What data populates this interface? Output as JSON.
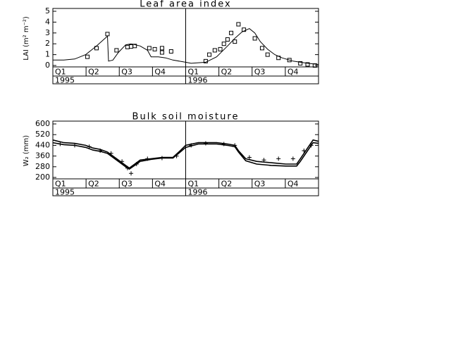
{
  "chart_data": [
    {
      "type": "line",
      "title": "Leaf area index",
      "y_label": "LAI (m² m⁻²)",
      "xlim": [
        0,
        730
      ],
      "ylim": [
        0,
        5
      ],
      "yticks": [
        0,
        1,
        2,
        3,
        4,
        5
      ],
      "quarters": [
        "Q1",
        "Q2",
        "Q3",
        "Q4"
      ],
      "years": [
        "1995",
        "1996"
      ],
      "series": [
        {
          "style": "line",
          "color": "#000",
          "x": [
            0,
            30,
            60,
            90,
            120,
            140,
            150,
            153,
            165,
            180,
            200,
            215,
            240,
            260,
            270,
            290,
            310,
            330,
            365,
            380,
            420,
            450,
            480,
            500,
            520,
            540,
            555,
            570,
            590,
            610,
            630,
            660,
            700,
            730
          ],
          "values": [
            0.5,
            0.5,
            0.6,
            1.0,
            1.8,
            2.4,
            2.7,
            0.4,
            0.5,
            1.2,
            1.9,
            2.0,
            1.8,
            1.4,
            0.8,
            0.8,
            0.7,
            0.5,
            0.3,
            0.2,
            0.3,
            0.8,
            1.8,
            2.5,
            3.1,
            3.4,
            3.0,
            2.2,
            1.5,
            1.0,
            0.7,
            0.4,
            0.2,
            0.1
          ]
        },
        {
          "style": "square",
          "color": "#000",
          "x": [
            95,
            120,
            150,
            175,
            205,
            215,
            225,
            265,
            280,
            300,
            300,
            325,
            420,
            430,
            445,
            460,
            470,
            480,
            490,
            500,
            510,
            525,
            555,
            575,
            590,
            620,
            650,
            680,
            700,
            720
          ],
          "values": [
            0.8,
            1.6,
            2.9,
            1.4,
            1.7,
            1.75,
            1.8,
            1.6,
            1.5,
            1.6,
            1.2,
            1.3,
            0.4,
            1.0,
            1.4,
            1.5,
            2.0,
            2.4,
            3.0,
            2.2,
            3.8,
            3.3,
            2.5,
            1.6,
            1.0,
            0.7,
            0.5,
            0.2,
            0.1,
            0.0
          ]
        }
      ]
    },
    {
      "type": "line",
      "title": "Bulk soil moisture",
      "y_label": "W₂ (mm)",
      "xlim": [
        0,
        730
      ],
      "ylim": [
        200,
        600
      ],
      "yticks": [
        200,
        280,
        360,
        440,
        520,
        600
      ],
      "quarters": [
        "Q1",
        "Q2",
        "Q3",
        "Q4"
      ],
      "years": [
        "1995",
        "1996"
      ],
      "series": [
        {
          "style": "line",
          "color": "#000",
          "x": [
            0,
            30,
            60,
            90,
            110,
            130,
            150,
            180,
            200,
            210,
            225,
            240,
            270,
            300,
            330,
            350,
            365,
            400,
            450,
            480,
            500,
            510,
            530,
            560,
            600,
            640,
            670,
            680,
            700,
            715,
            730
          ],
          "values": [
            480,
            460,
            455,
            440,
            420,
            410,
            390,
            330,
            290,
            270,
            300,
            330,
            340,
            350,
            350,
            400,
            440,
            460,
            460,
            450,
            440,
            400,
            340,
            320,
            310,
            300,
            300,
            340,
            420,
            480,
            470
          ]
        },
        {
          "style": "line",
          "color": "#000",
          "x": [
            0,
            30,
            60,
            90,
            110,
            130,
            150,
            180,
            200,
            210,
            225,
            240,
            270,
            300,
            330,
            350,
            365,
            400,
            450,
            480,
            500,
            510,
            530,
            560,
            600,
            640,
            670,
            680,
            700,
            715,
            730
          ],
          "values": [
            460,
            445,
            440,
            425,
            405,
            395,
            380,
            320,
            280,
            262,
            290,
            320,
            335,
            345,
            345,
            390,
            425,
            450,
            450,
            440,
            430,
            390,
            325,
            300,
            290,
            285,
            285,
            320,
            400,
            460,
            455
          ]
        },
        {
          "style": "plus",
          "color": "#000",
          "x": [
            20,
            60,
            100,
            130,
            160,
            190,
            205,
            215,
            230,
            260,
            300,
            340,
            380,
            420,
            470,
            500,
            540,
            580,
            620,
            660,
            690,
            710
          ],
          "values": [
            450,
            440,
            430,
            400,
            380,
            320,
            270,
            230,
            300,
            340,
            345,
            360,
            440,
            455,
            450,
            440,
            350,
            330,
            340,
            340,
            400,
            440
          ]
        }
      ]
    }
  ]
}
